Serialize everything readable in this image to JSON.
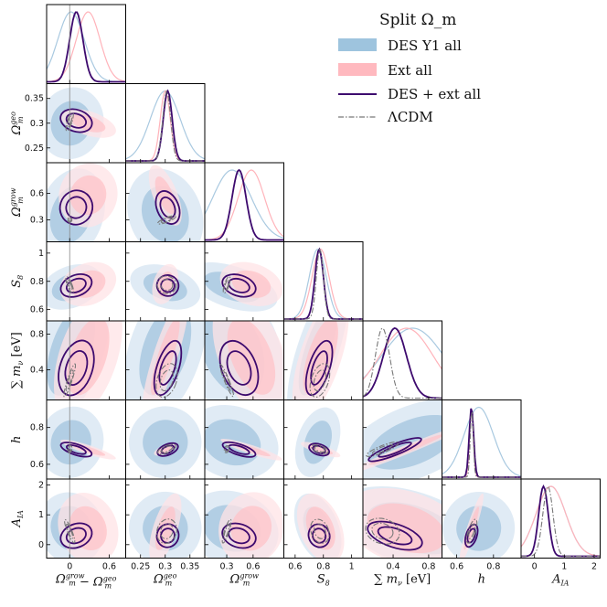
{
  "chart_data": {
    "type": "corner",
    "legend": {
      "title": "Split Ω_m",
      "entries": [
        {
          "name": "DES Y1 all",
          "color": "#9ec4de",
          "style": "fill"
        },
        {
          "name": "Ext all",
          "color": "#ffb9bf",
          "style": "fill"
        },
        {
          "name": "DES + ext all",
          "color": "#3d0a6e",
          "style": "solid"
        },
        {
          "name": "ΛCDM",
          "color": "#777777",
          "style": "dashdot"
        }
      ]
    },
    "parameters": [
      {
        "key": "dom",
        "label": "Ω_m^grow − Ω_m^geo",
        "ylabel": "",
        "range": [
          -0.35,
          0.85
        ],
        "xticks": [
          0.0,
          0.6
        ],
        "yticks": []
      },
      {
        "key": "omgeo",
        "label": "Ω_m^geo",
        "ylabel": "Ω_m^geo",
        "range": [
          0.22,
          0.38
        ],
        "xticks": [
          0.25,
          0.3,
          0.35
        ],
        "yticks": [
          0.25,
          0.3,
          0.35
        ]
      },
      {
        "key": "omgrow",
        "label": "Ω_m^grow",
        "ylabel": "Ω_m^grow",
        "range": [
          0.05,
          0.95
        ],
        "xticks": [
          0.3,
          0.6
        ],
        "yticks": [
          0.3,
          0.6
        ]
      },
      {
        "key": "s8",
        "label": "S_8",
        "ylabel": "S_8",
        "range": [
          0.52,
          1.08
        ],
        "xticks": [
          0.6,
          0.8,
          1.0
        ],
        "yticks": [
          0.6,
          0.8,
          1.0
        ]
      },
      {
        "key": "mnu",
        "label": "Σ m_ν [eV]",
        "ylabel": "Σ m_ν [eV]",
        "range": [
          0.06,
          0.95
        ],
        "xticks": [
          0.4,
          0.8
        ],
        "yticks": [
          0.4,
          0.8
        ]
      },
      {
        "key": "h",
        "label": "h",
        "ylabel": "h",
        "range": [
          0.52,
          0.95
        ],
        "xticks": [
          0.6,
          0.8
        ],
        "yticks": [
          0.6,
          0.8
        ]
      },
      {
        "key": "aia",
        "label": "A_IA",
        "ylabel": "A_IA",
        "range": [
          -0.45,
          2.2
        ],
        "xticks": [
          0,
          1,
          2
        ],
        "yticks": [
          0,
          1,
          2
        ]
      }
    ],
    "reference_line": {
      "parameter": "dom",
      "value": 0.0
    },
    "posteriors": {
      "des_y1_all": {
        "mean": [
          0.02,
          0.3,
          0.36,
          0.76,
          0.62,
          0.72,
          0.55
        ],
        "sd": [
          0.2,
          0.03,
          0.22,
          0.06,
          0.35,
          0.08,
          0.5
        ]
      },
      "ext_all": {
        "mean": [
          0.28,
          0.3,
          0.58,
          0.78,
          0.55,
          0.68,
          0.55
        ],
        "sd": [
          0.18,
          0.01,
          0.15,
          0.06,
          0.3,
          0.01,
          0.5
        ]
      },
      "des_ext_all": {
        "mean": [
          0.1,
          0.305,
          0.44,
          0.77,
          0.42,
          0.68,
          0.3
        ],
        "sd": [
          0.1,
          0.009,
          0.08,
          0.03,
          0.13,
          0.012,
          0.16
        ]
      },
      "lcdm": {
        "mean": [
          0.0,
          0.303,
          0.3,
          0.775,
          0.28,
          0.682,
          0.45
        ],
        "sd": [
          0.0,
          0.008,
          0.0,
          0.025,
          0.08,
          0.008,
          0.17
        ]
      }
    }
  }
}
